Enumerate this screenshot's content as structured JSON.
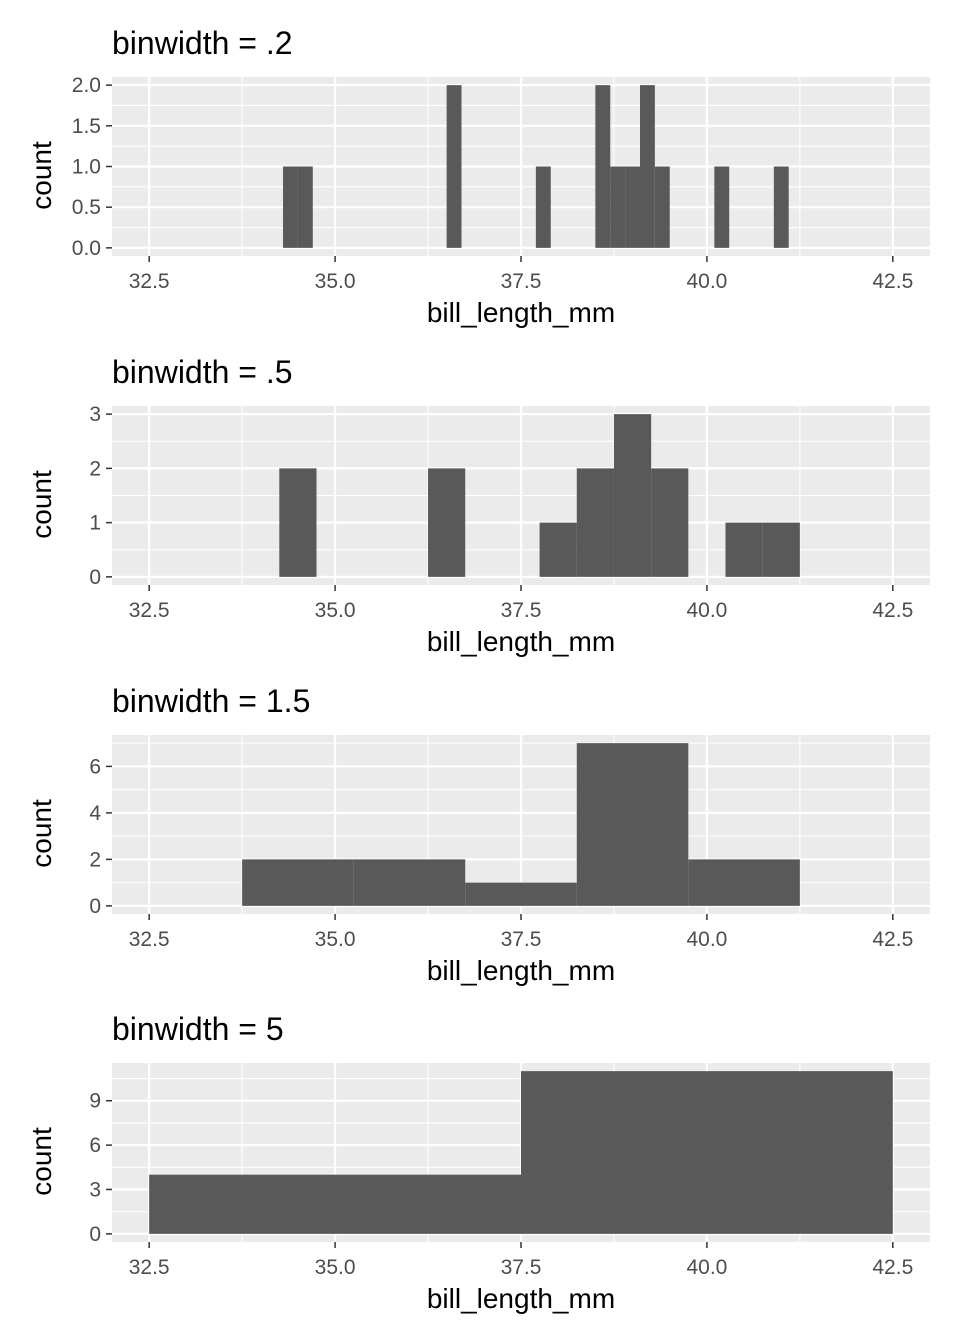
{
  "chart_data": [
    {
      "type": "bar",
      "title": "binwidth = .2",
      "xlabel": "bill_length_mm",
      "ylabel": "count",
      "xlim": [
        32.0,
        43.0
      ],
      "ylim": [
        -0.1,
        2.1
      ],
      "x_ticks": [
        32.5,
        35.0,
        37.5,
        40.0,
        42.5
      ],
      "x_tick_labels": [
        "32.5",
        "35.0",
        "37.5",
        "40.0",
        "42.5"
      ],
      "y_ticks": [
        0,
        0.5,
        1,
        1.5,
        2
      ],
      "y_tick_labels": [
        "0.0",
        "0.5",
        "1.0",
        "1.5",
        "2.0"
      ],
      "grid": true,
      "bins": [
        {
          "x0": 34.3,
          "x1": 34.5,
          "count": 1
        },
        {
          "x0": 34.5,
          "x1": 34.7,
          "count": 1
        },
        {
          "x0": 36.5,
          "x1": 36.7,
          "count": 2
        },
        {
          "x0": 37.7,
          "x1": 37.9,
          "count": 1
        },
        {
          "x0": 38.5,
          "x1": 38.7,
          "count": 2
        },
        {
          "x0": 38.7,
          "x1": 38.9,
          "count": 1
        },
        {
          "x0": 38.9,
          "x1": 39.1,
          "count": 1
        },
        {
          "x0": 39.1,
          "x1": 39.3,
          "count": 2
        },
        {
          "x0": 39.3,
          "x1": 39.5,
          "count": 1
        },
        {
          "x0": 40.1,
          "x1": 40.3,
          "count": 1
        },
        {
          "x0": 40.9,
          "x1": 41.1,
          "count": 1
        }
      ]
    },
    {
      "type": "bar",
      "title": "binwidth = .5",
      "xlabel": "bill_length_mm",
      "ylabel": "count",
      "xlim": [
        32.0,
        43.0
      ],
      "ylim": [
        -0.15,
        3.15
      ],
      "x_ticks": [
        32.5,
        35.0,
        37.5,
        40.0,
        42.5
      ],
      "x_tick_labels": [
        "32.5",
        "35.0",
        "37.5",
        "40.0",
        "42.5"
      ],
      "y_ticks": [
        0,
        1,
        2,
        3
      ],
      "y_tick_labels": [
        "0",
        "1",
        "2",
        "3"
      ],
      "grid": true,
      "bins": [
        {
          "x0": 34.25,
          "x1": 34.75,
          "count": 2
        },
        {
          "x0": 36.25,
          "x1": 36.75,
          "count": 2
        },
        {
          "x0": 37.75,
          "x1": 38.25,
          "count": 1
        },
        {
          "x0": 38.25,
          "x1": 38.75,
          "count": 2
        },
        {
          "x0": 38.75,
          "x1": 39.25,
          "count": 3
        },
        {
          "x0": 39.25,
          "x1": 39.75,
          "count": 2
        },
        {
          "x0": 40.25,
          "x1": 40.75,
          "count": 1
        },
        {
          "x0": 40.75,
          "x1": 41.25,
          "count": 1
        }
      ]
    },
    {
      "type": "bar",
      "title": "binwidth = 1.5",
      "xlabel": "bill_length_mm",
      "ylabel": "count",
      "xlim": [
        32.0,
        43.0
      ],
      "ylim": [
        -0.35,
        7.35
      ],
      "x_ticks": [
        32.5,
        35.0,
        37.5,
        40.0,
        42.5
      ],
      "x_tick_labels": [
        "32.5",
        "35.0",
        "37.5",
        "40.0",
        "42.5"
      ],
      "y_ticks": [
        0,
        2,
        4,
        6
      ],
      "y_tick_labels": [
        "0",
        "2",
        "4",
        "6"
      ],
      "grid": true,
      "bins": [
        {
          "x0": 33.75,
          "x1": 35.25,
          "count": 2
        },
        {
          "x0": 35.25,
          "x1": 36.75,
          "count": 2
        },
        {
          "x0": 36.75,
          "x1": 38.25,
          "count": 1
        },
        {
          "x0": 38.25,
          "x1": 39.75,
          "count": 7
        },
        {
          "x0": 39.75,
          "x1": 41.25,
          "count": 2
        }
      ]
    },
    {
      "type": "bar",
      "title": "binwidth = 5",
      "xlabel": "bill_length_mm",
      "ylabel": "count",
      "xlim": [
        32.0,
        43.0
      ],
      "ylim": [
        -0.55,
        11.55
      ],
      "x_ticks": [
        32.5,
        35.0,
        37.5,
        40.0,
        42.5
      ],
      "x_tick_labels": [
        "32.5",
        "35.0",
        "37.5",
        "40.0",
        "42.5"
      ],
      "y_ticks": [
        0,
        3,
        6,
        9
      ],
      "y_tick_labels": [
        "0",
        "3",
        "6",
        "9"
      ],
      "grid": true,
      "bins": [
        {
          "x0": 32.5,
          "x1": 37.5,
          "count": 4
        },
        {
          "x0": 37.5,
          "x1": 42.5,
          "count": 11
        }
      ]
    }
  ],
  "colors": {
    "panel_background": "#ebebeb",
    "grid_major": "#ffffff",
    "bar_fill": "#595959",
    "tick_text": "#4d4d4d",
    "tick_mark": "#333333"
  }
}
